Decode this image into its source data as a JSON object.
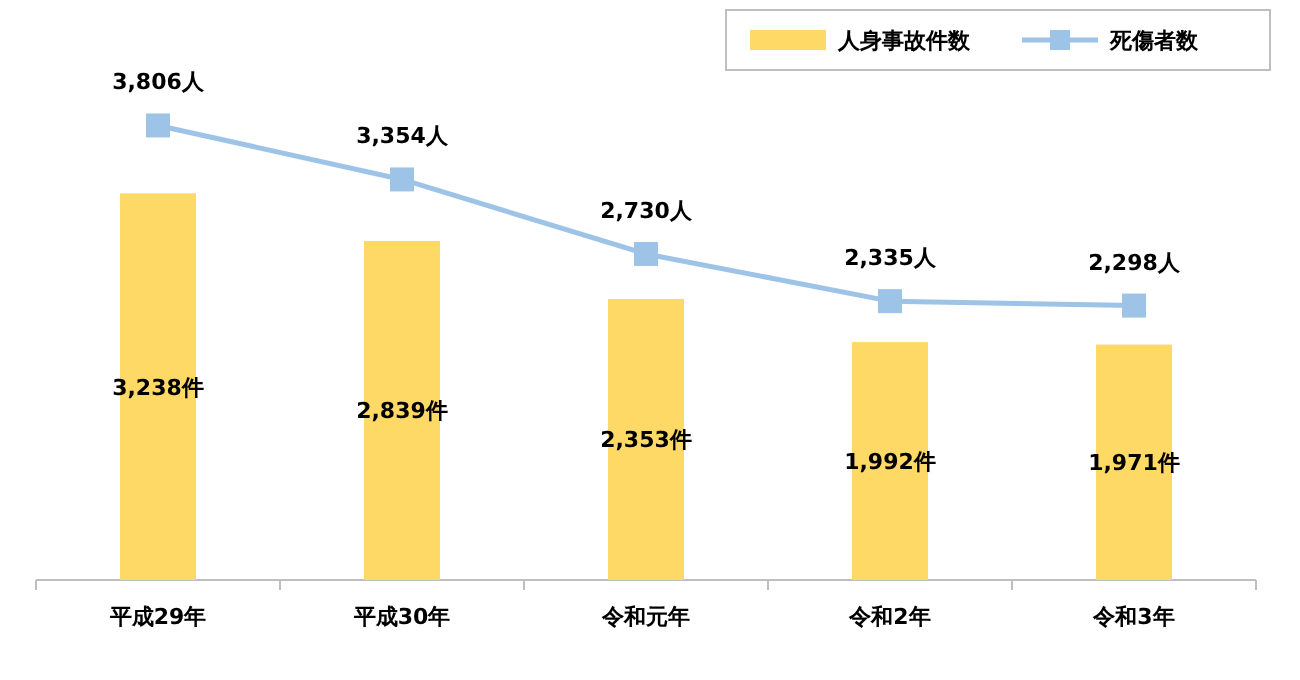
{
  "chart_data": {
    "type": "bar",
    "categories": [
      "平成29年",
      "平成30年",
      "令和元年",
      "令和2年",
      "令和3年"
    ],
    "series": [
      {
        "name": "人身事故件数",
        "color": "#ffd966",
        "values": [
          3238,
          2839,
          2353,
          1992,
          1971
        ],
        "value_labels": [
          "3,238件",
          "2,839件",
          "2,353件",
          "1,992件",
          "1,971件"
        ]
      },
      {
        "name": "死傷者数",
        "type": "line",
        "color": "#9dc3e6",
        "marker": "square",
        "line_style": "solid",
        "values": [
          3806,
          3354,
          2730,
          2335,
          2298
        ],
        "value_labels": [
          "3,806人",
          "3,354人",
          "2,730人",
          "2,335人",
          "2,298人"
        ]
      }
    ],
    "legend": "top right"
  }
}
